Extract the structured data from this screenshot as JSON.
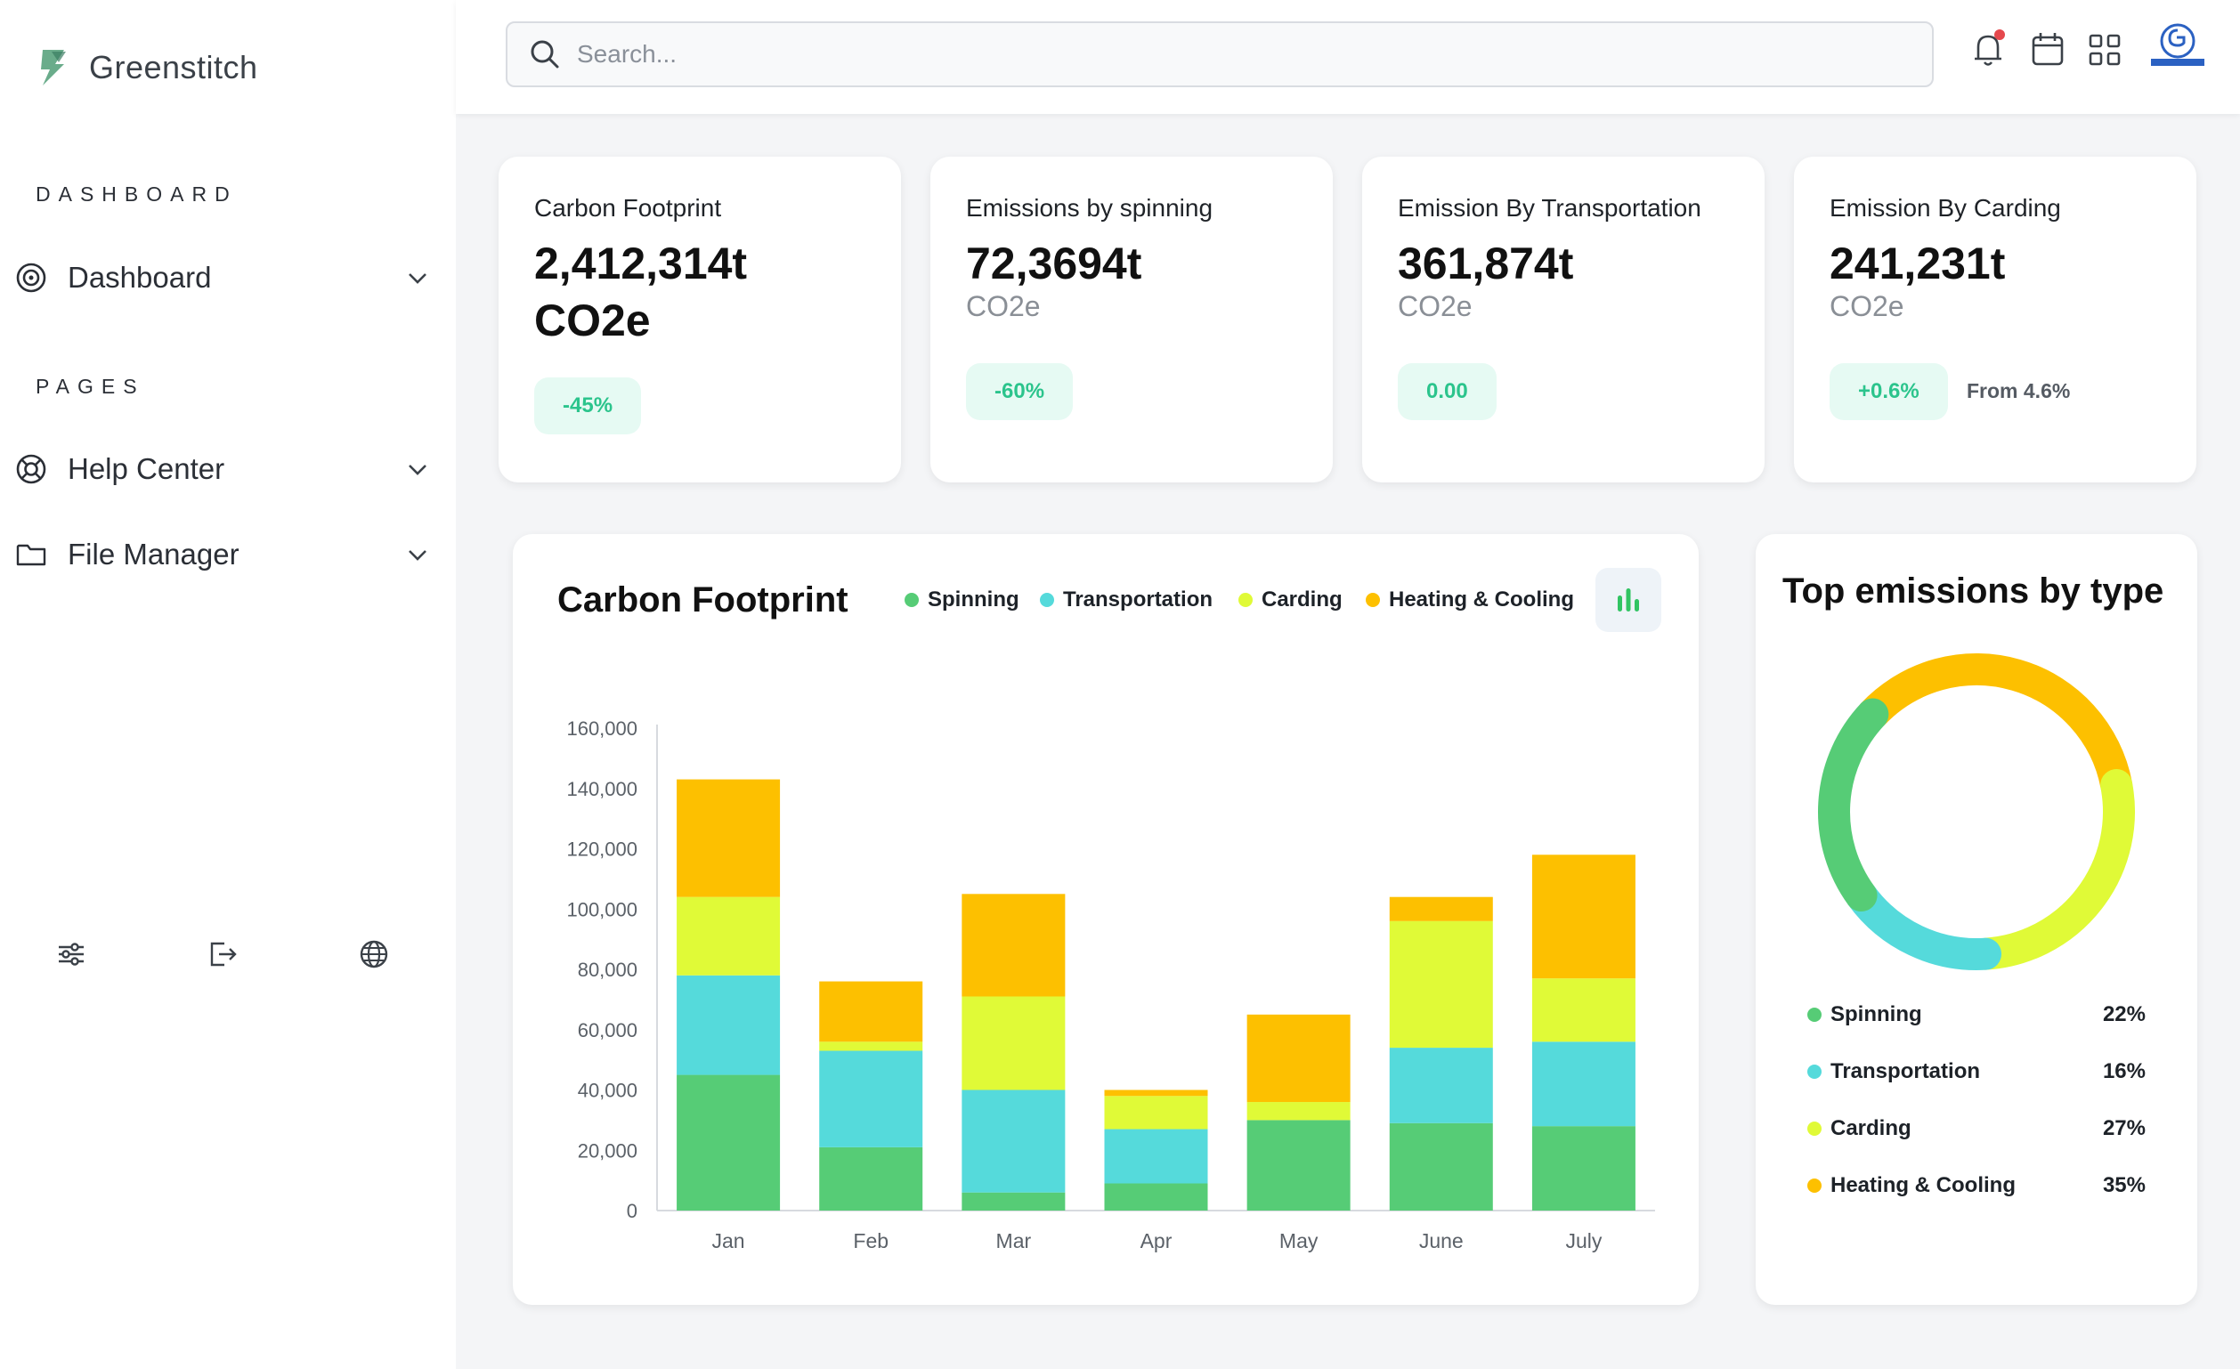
{
  "app": {
    "name": "Greenstitch"
  },
  "sidebar": {
    "sections": [
      {
        "label": "DASHBOARD",
        "items": [
          {
            "label": "Dashboard",
            "icon": "target-icon"
          }
        ]
      },
      {
        "label": "PAGES",
        "items": [
          {
            "label": "Help Center",
            "icon": "lifebuoy-icon"
          },
          {
            "label": "File Manager",
            "icon": "folder-icon"
          }
        ]
      }
    ],
    "bottom_icons": [
      "sliders-icon",
      "logout-icon",
      "globe-icon"
    ]
  },
  "search": {
    "placeholder": "Search..."
  },
  "topbar": {
    "icons": [
      "bell-icon",
      "calendar-icon",
      "grid-icon",
      "avatar"
    ],
    "notification_dot_color": "#e5484d"
  },
  "stats": [
    {
      "title": "Carbon Footprint",
      "value": "2,412,314t",
      "value_unit": "CO2e",
      "badge": "-45%",
      "note": ""
    },
    {
      "title": "Emissions by spinning",
      "value": "72,3694t",
      "unit": "CO2e",
      "badge": "-60%",
      "note": ""
    },
    {
      "title": "Emission By Transportation",
      "value": "361,874t",
      "unit": "CO2e",
      "badge": "0.00",
      "note": ""
    },
    {
      "title": "Emission By Carding",
      "value": "241,231t",
      "unit": "CO2e",
      "badge": "+0.6%",
      "note": "From 4.6%"
    }
  ],
  "colors": {
    "spinning": "#56cc76",
    "transportation": "#55dadb",
    "carding": "#e0fa37",
    "heating": "#fdc000",
    "badge_bg": "#e6faf3",
    "badge_text": "#2bc48c",
    "chart_button": "#31c463"
  },
  "chart_data": {
    "type": "bar",
    "stacked": true,
    "title": "Carbon Footprint",
    "categories": [
      "Jan",
      "Feb",
      "Mar",
      "Apr",
      "May",
      "June",
      "July"
    ],
    "series": [
      {
        "name": "Spinning",
        "values": [
          45000,
          21000,
          6000,
          9000,
          30000,
          29000,
          28000
        ]
      },
      {
        "name": "Transportation",
        "values": [
          33000,
          32000,
          34000,
          18000,
          0,
          25000,
          28000
        ]
      },
      {
        "name": "Carding",
        "values": [
          26000,
          3000,
          31000,
          11000,
          6000,
          42000,
          21000
        ]
      },
      {
        "name": "Heating & Cooling",
        "values": [
          39000,
          20000,
          34000,
          2000,
          29000,
          8000,
          41000
        ]
      }
    ],
    "ylim": [
      0,
      160000
    ],
    "yticks": [
      "0",
      "20,000",
      "40,000",
      "60,000",
      "80,000",
      "100,000",
      "120,000",
      "140,000",
      "160,000"
    ],
    "legend_position": "top",
    "grid": false
  },
  "donut": {
    "title": "Top emissions by type",
    "items": [
      {
        "label": "Spinning",
        "pct": "22%",
        "value": 22
      },
      {
        "label": "Transportation",
        "pct": "16%",
        "value": 16
      },
      {
        "label": "Carding",
        "pct": "27%",
        "value": 27
      },
      {
        "label": "Heating & Cooling",
        "pct": "35%",
        "value": 35
      }
    ]
  }
}
